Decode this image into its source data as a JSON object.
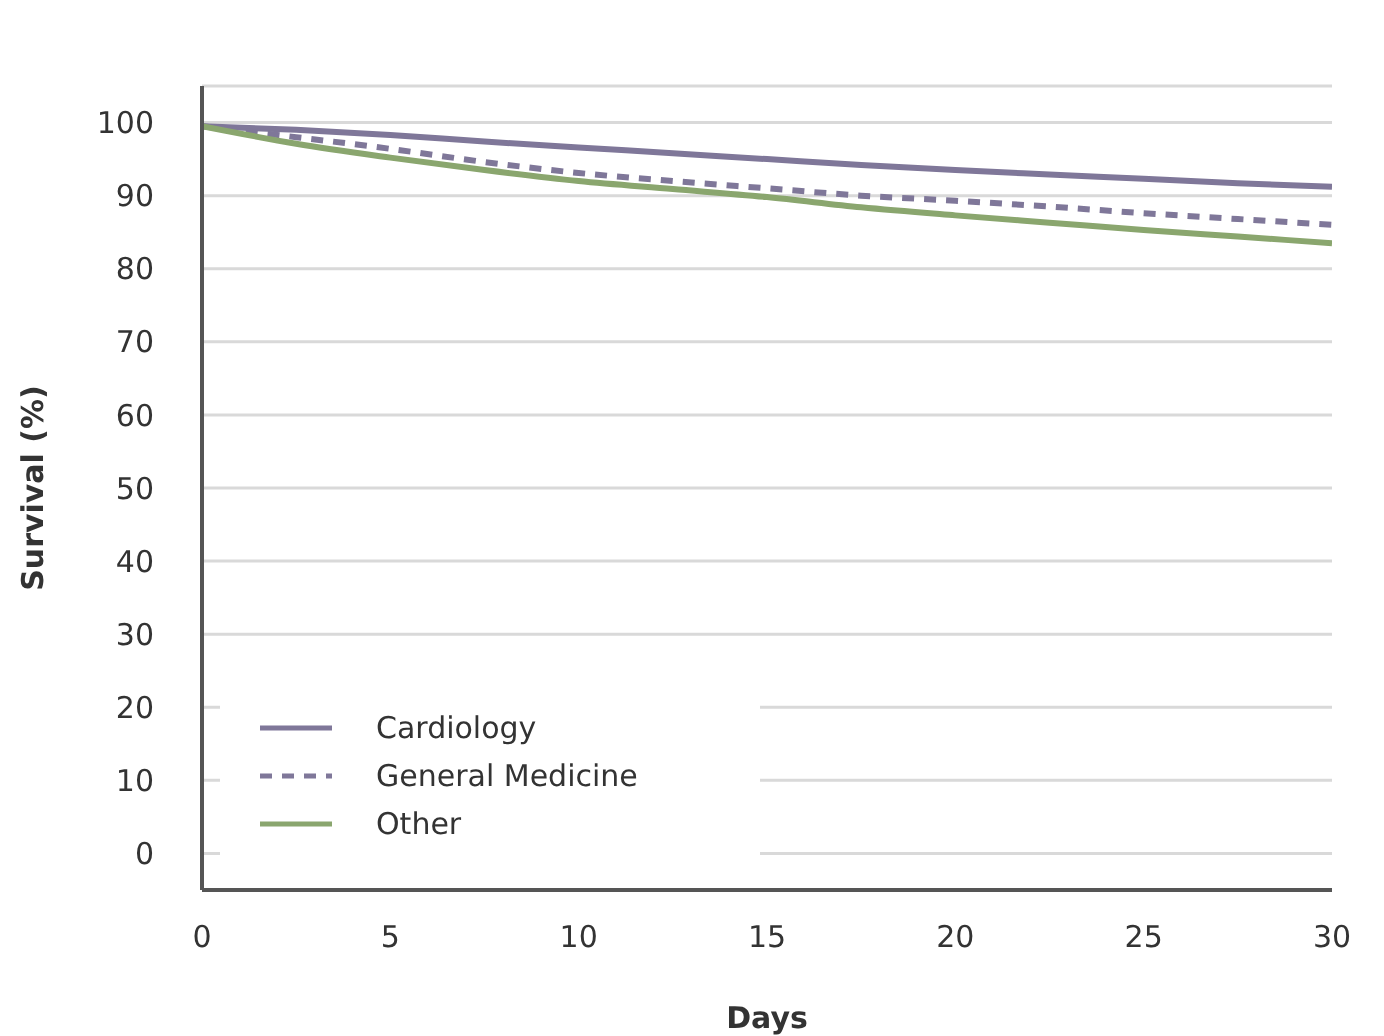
{
  "chart_data": {
    "type": "line",
    "xlabel": "Days",
    "ylabel": "Survival (%)",
    "x": [
      0,
      2.5,
      5,
      7.5,
      10,
      12.5,
      15,
      17.5,
      20,
      22.5,
      25,
      27.5,
      30
    ],
    "series": [
      {
        "name": "Cardiology",
        "color": "#7f7799",
        "line_style": "solid",
        "values": [
          99.5,
          99,
          98.3,
          97.4,
          96.6,
          95.8,
          95,
          94.2,
          93.5,
          92.9,
          92.3,
          91.7,
          91.2
        ]
      },
      {
        "name": "General Medicine",
        "color": "#7f7799",
        "line_style": "dashed",
        "values": [
          99.5,
          98,
          96.4,
          94.6,
          93.1,
          92,
          91,
          90,
          89.3,
          88.5,
          87.6,
          86.8,
          86
        ]
      },
      {
        "name": "Other",
        "color": "#8aa66e",
        "line_style": "solid",
        "values": [
          99.5,
          97.1,
          95.2,
          93.5,
          92,
          90.9,
          89.8,
          88.4,
          87.3,
          86.3,
          85.3,
          84.4,
          83.5
        ]
      }
    ],
    "xlim": [
      0,
      30
    ],
    "xticks": [
      0,
      5,
      10,
      15,
      20,
      25,
      30
    ],
    "ylim": [
      -5,
      105
    ],
    "yticks": [
      0,
      10,
      20,
      30,
      40,
      50,
      60,
      70,
      80,
      90,
      100
    ],
    "grid": "y",
    "legend": "bottom left",
    "marker": "none"
  }
}
